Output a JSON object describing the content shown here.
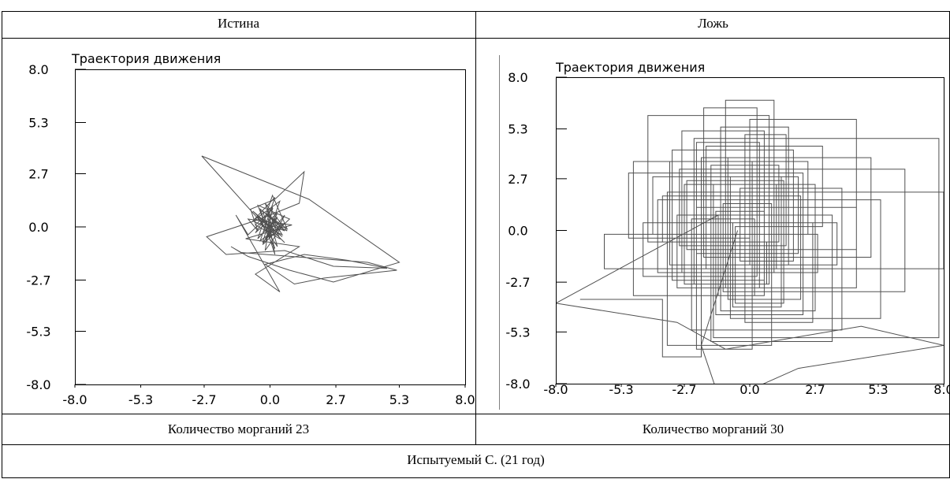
{
  "table": {
    "header_left": "Истина",
    "header_right": "Ложь",
    "footer_left": "Количество морганий 23",
    "footer_right": "Количество морганий 30",
    "caption": "Испытуемый С. (21 год)"
  },
  "colors": {
    "line": "#505050",
    "axis": "#000000",
    "border": "#000000"
  },
  "chart_data": [
    {
      "type": "line",
      "title": "Траектория движения",
      "xlabel": "",
      "ylabel": "",
      "xlim": [
        -8.0,
        8.0
      ],
      "ylim": [
        -8.0,
        8.0
      ],
      "xticks": [
        "-8.0",
        "-5.3",
        "-2.7",
        "0.0",
        "2.7",
        "5.3",
        "8.0"
      ],
      "yticks": [
        "8.0",
        "5.3",
        "2.7",
        "0.0",
        "-2.7",
        "-5.3",
        "-8.0"
      ],
      "grid": false,
      "series": [
        {
          "x": [
            -0.4,
            0.2,
            0.6,
            -0.3,
            0.1,
            -0.6,
            0.4,
            -0.2,
            0.7,
            -0.5,
            0.3,
            -0.1,
            0.5,
            -0.7,
            0.2,
            -0.4,
            0.6,
            -0.2,
            0.1,
            -0.6,
            0.3,
            -0.3,
            0.8,
            -0.5,
            0.0,
            0.5,
            -0.4,
            0.2,
            -0.1,
            0.6,
            -0.6,
            0.4,
            -0.2,
            0.3,
            -0.5,
            0.1,
            0.7,
            -0.3,
            0.2,
            -0.4,
            -2.8,
            1.6,
            5.3,
            2.6,
            0.8,
            -0.9,
            -1.6,
            -1.2,
            4.0,
            5.2,
            2.2,
            1.0,
            -0.2,
            1.4,
            3.2,
            4.8,
            2.6,
            0.6,
            -1.8,
            -2.6,
            -0.4,
            1.2,
            1.4,
            0.2,
            -0.8,
            -0.5,
            -0.9,
            0.9,
            -1.0,
            1.2,
            -0.6,
            0.4,
            -1.4,
            -0.9,
            -0.3,
            0.6,
            -0.7,
            0.5,
            -0.2,
            0.1
          ],
          "y": [
            0.2,
            -0.4,
            0.6,
            -0.8,
            0.9,
            0.1,
            -0.6,
            1.2,
            -0.2,
            0.5,
            -1.0,
            0.8,
            -0.4,
            0.3,
            1.5,
            -0.7,
            0.2,
            -1.2,
            1.0,
            -0.3,
            0.7,
            -0.9,
            0.4,
            1.1,
            -0.5,
            0.0,
            0.9,
            -1.4,
            0.6,
            -0.2,
            0.4,
            1.3,
            -0.8,
            0.5,
            -0.6,
            1.6,
            -0.1,
            0.8,
            -1.1,
            0.3,
            3.6,
            1.4,
            -1.8,
            -2.8,
            -2.2,
            -1.5,
            -1.0,
            -1.3,
            -1.8,
            -2.2,
            -2.6,
            -2.9,
            -1.9,
            -1.4,
            -1.7,
            -2.1,
            -2.0,
            -1.2,
            -1.4,
            -0.5,
            0.4,
            1.2,
            2.8,
            1.4,
            0.9,
            -0.2,
            0.4,
            0.1,
            -0.6,
            -1.0,
            -2.4,
            -3.3,
            0.6,
            -0.4,
            0.3,
            -0.8,
            0.8,
            -0.5,
            0.2,
            0.0
          ]
        }
      ]
    },
    {
      "type": "line",
      "title": "Траектория движения",
      "xlabel": "",
      "ylabel": "",
      "xlim": [
        -8.0,
        8.0
      ],
      "ylim": [
        -8.0,
        8.0
      ],
      "xticks": [
        "-8.0",
        "-5.3",
        "-2.7",
        "0.0",
        "2.7",
        "5.3",
        "8.0"
      ],
      "yticks": [
        "8.0",
        "5.3",
        "2.7",
        "0.0",
        "-2.7",
        "-5.3",
        "-8.0"
      ],
      "grid": false,
      "series": [
        {
          "x": [
            -7.0,
            -3.6,
            -3.6,
            -2.0,
            -2.0,
            0.0,
            0.0,
            1.6,
            1.6,
            -1.2,
            -1.2,
            2.7,
            2.7,
            -2.7,
            -2.7,
            0.8,
            0.8,
            -4.2,
            -4.2,
            1.2,
            1.2,
            -1.6,
            -1.6,
            3.4,
            3.4,
            -3.0,
            -3.0,
            0.4,
            0.4,
            -2.2,
            -2.2,
            2.0,
            2.0,
            -0.8,
            -0.8,
            5.4,
            5.4,
            -3.8,
            -3.8,
            1.0,
            1.0,
            -1.0,
            -1.0,
            2.4,
            2.4,
            -4.8,
            -4.8,
            0.2,
            0.2,
            -2.4,
            -2.4,
            3.8,
            3.8,
            -0.4,
            -0.4,
            1.8,
            1.8,
            -3.2,
            -3.2,
            0.6,
            0.6,
            -1.4,
            -1.4,
            2.2,
            2.2,
            -5.0,
            -5.0,
            0.0,
            0.0,
            4.4,
            4.4,
            -2.6,
            -2.6,
            1.4,
            1.4,
            -0.6,
            -0.6,
            3.0,
            3.0,
            -1.8,
            -1.8,
            8.0,
            8.0,
            -3.4,
            -3.4,
            0.9,
            0.9,
            -1.1,
            -1.1,
            6.4,
            6.4,
            -2.9,
            -2.9,
            1.5,
            1.5,
            -0.2,
            -0.2,
            2.6,
            2.6,
            -4.4,
            -4.4,
            0.3,
            0.3,
            -1.9,
            -1.9,
            5.0,
            5.0,
            -0.9,
            -0.9,
            2.1,
            2.1,
            -3.6,
            -3.6,
            0.7,
            0.7,
            -2.3,
            -2.3,
            7.8,
            7.8,
            -1.5,
            -1.5,
            1.1,
            1.1,
            -6.0,
            -6.0,
            -1.0,
            -1.0,
            4.4,
            4.4,
            -2.2,
            -2.2,
            0.1,
            0.1,
            -3.3,
            -3.3,
            3.6,
            3.6,
            -0.7,
            -0.7,
            1.3,
            1.3,
            -4.0,
            -4.0,
            2.8,
            2.8,
            -2.8,
            -2.8,
            0.6,
            0.6,
            -1.3,
            -1.3,
            -8.0,
            -3.0,
            -1.0,
            4.6,
            8.0,
            2.0,
            -1.2,
            -2.0,
            -0.5
          ],
          "y": [
            -3.6,
            -3.6,
            -6.6,
            -6.6,
            3.8,
            3.8,
            -1.8,
            -1.8,
            5.4,
            5.4,
            -4.2,
            -4.2,
            2.4,
            2.4,
            -2.8,
            -2.8,
            6.0,
            6.0,
            -0.6,
            -0.6,
            3.4,
            3.4,
            -5.8,
            -5.8,
            0.8,
            0.8,
            -3.0,
            -3.0,
            4.6,
            4.6,
            -1.2,
            -1.2,
            2.8,
            2.8,
            -4.6,
            -4.6,
            1.6,
            1.6,
            -2.2,
            -2.2,
            6.8,
            6.8,
            -0.2,
            -0.2,
            3.6,
            3.6,
            -3.4,
            -3.4,
            0.6,
            0.6,
            -5.2,
            -5.2,
            2.2,
            2.2,
            -1.6,
            -1.6,
            4.2,
            4.2,
            -2.6,
            -2.6,
            1.0,
            1.0,
            -4.4,
            -4.4,
            3.0,
            3.0,
            -0.4,
            -0.4,
            5.8,
            5.8,
            -1.0,
            -1.0,
            2.6,
            2.6,
            -3.8,
            -3.8,
            0.2,
            0.2,
            4.4,
            4.4,
            -2.0,
            -2.0,
            2.0,
            2.0,
            -6.0,
            -6.0,
            1.4,
            1.4,
            -3.2,
            -3.2,
            3.2,
            3.2,
            -0.8,
            -0.8,
            5.0,
            5.0,
            -4.8,
            -4.8,
            0.4,
            0.4,
            -2.4,
            -2.4,
            6.4,
            6.4,
            -1.4,
            -1.4,
            3.8,
            3.8,
            -3.6,
            -3.6,
            1.8,
            1.8,
            -0.6,
            -0.6,
            -2.8,
            -2.8,
            4.8,
            4.8,
            -5.6,
            -5.6,
            2.4,
            2.4,
            -2.0,
            -2.0,
            -0.2,
            -0.2,
            -3.0,
            -3.0,
            1.2,
            1.2,
            -6.2,
            -6.2,
            3.6,
            3.6,
            -1.8,
            -1.8,
            0.4,
            0.4,
            -4.0,
            -4.0,
            2.8,
            2.8,
            -0.2,
            -0.2,
            -2.2,
            -2.2,
            5.2,
            5.2,
            -3.4,
            -3.4,
            0.8,
            -3.8,
            -4.8,
            -6.2,
            -5.0,
            -6.0,
            -7.2,
            -9.0,
            -6.0,
            0.0
          ]
        }
      ]
    }
  ]
}
